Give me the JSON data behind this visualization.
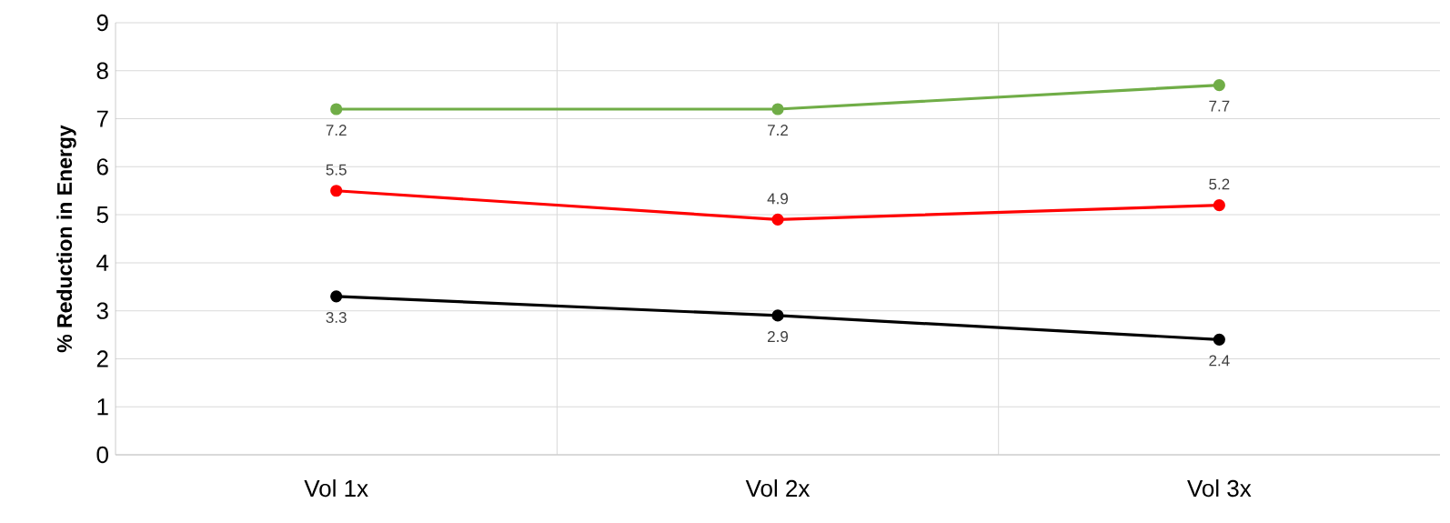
{
  "chart_data": {
    "type": "line",
    "ylabel": "% Reduction in Energy",
    "categories": [
      "Vol 1x",
      "Vol 2x",
      "Vol 3x"
    ],
    "series": [
      {
        "color": "#70ad47",
        "values": [
          7.2,
          7.2,
          7.7
        ]
      },
      {
        "color": "#ff0000",
        "values": [
          5.5,
          4.9,
          5.2
        ]
      },
      {
        "color": "#000000",
        "values": [
          3.3,
          2.9,
          2.4
        ]
      }
    ],
    "ylim": [
      0,
      9
    ],
    "yticks": [
      0,
      1,
      2,
      3,
      4,
      5,
      6,
      7,
      8,
      9
    ],
    "grid": true,
    "marker": "circle",
    "line_style": "solid",
    "data_labels": true
  }
}
